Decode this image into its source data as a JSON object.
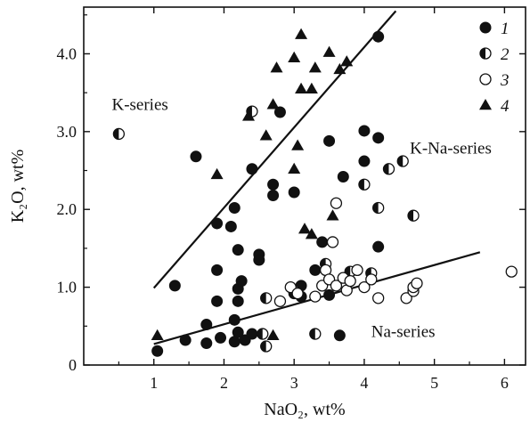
{
  "chart_data": {
    "type": "scatter",
    "title": "",
    "xlabel": "NaO₂, wt%",
    "ylabel": "K₂O, wt%",
    "xlim": [
      0,
      6.3
    ],
    "ylim": [
      0,
      4.6
    ],
    "xticks": [
      1,
      2,
      3,
      4,
      5,
      6
    ],
    "yticks": [
      0,
      1.0,
      2.0,
      3.0,
      4.0
    ],
    "xtick_labels": [
      "1",
      "2",
      "3",
      "4",
      "5",
      "6"
    ],
    "ytick_labels": [
      "0",
      "1.0",
      "2.0",
      "3.0",
      "4.0"
    ],
    "grid": false,
    "legend_position": "top-right",
    "series": [
      {
        "name": "1",
        "marker": "filled-circle",
        "points": [
          [
            1.3,
            1.02
          ],
          [
            1.6,
            2.68
          ],
          [
            1.9,
            1.82
          ],
          [
            1.9,
            1.22
          ],
          [
            1.9,
            0.82
          ],
          [
            2.1,
            1.78
          ],
          [
            2.15,
            2.02
          ],
          [
            2.2,
            1.48
          ],
          [
            2.2,
            0.98
          ],
          [
            2.25,
            1.08
          ],
          [
            2.2,
            0.82
          ],
          [
            2.15,
            0.58
          ],
          [
            2.2,
            0.42
          ],
          [
            2.3,
            0.32
          ],
          [
            2.4,
            2.52
          ],
          [
            2.5,
            1.42
          ],
          [
            2.5,
            1.35
          ],
          [
            2.7,
            2.32
          ],
          [
            2.7,
            2.18
          ],
          [
            2.8,
            3.25
          ],
          [
            3.0,
            2.22
          ],
          [
            3.0,
            0.92
          ],
          [
            3.1,
            1.02
          ],
          [
            3.1,
            0.88
          ],
          [
            3.3,
            1.22
          ],
          [
            3.4,
            1.58
          ],
          [
            3.5,
            2.88
          ],
          [
            3.7,
            2.42
          ],
          [
            3.65,
            0.38
          ],
          [
            4.0,
            3.01
          ],
          [
            4.0,
            2.62
          ],
          [
            4.2,
            2.92
          ],
          [
            4.2,
            1.52
          ],
          [
            4.2,
            4.22
          ],
          [
            1.05,
            0.18
          ],
          [
            1.45,
            0.32
          ],
          [
            1.75,
            0.28
          ],
          [
            1.75,
            0.52
          ],
          [
            1.95,
            0.35
          ],
          [
            2.15,
            0.3
          ],
          [
            2.4,
            0.4
          ],
          [
            3.5,
            0.9
          ]
        ]
      },
      {
        "name": "2",
        "marker": "half-filled-circle",
        "points": [
          [
            0.5,
            2.97
          ],
          [
            2.4,
            3.26
          ],
          [
            2.55,
            0.4
          ],
          [
            2.6,
            0.24
          ],
          [
            3.3,
            0.4
          ],
          [
            3.45,
            1.3
          ],
          [
            4.0,
            2.32
          ],
          [
            4.2,
            2.02
          ],
          [
            4.35,
            2.52
          ],
          [
            4.55,
            2.62
          ],
          [
            4.7,
            1.92
          ],
          [
            2.6,
            0.86
          ],
          [
            3.0,
            0.95
          ],
          [
            3.8,
            1.2
          ],
          [
            4.1,
            1.18
          ]
        ]
      },
      {
        "name": "3",
        "marker": "open-circle",
        "points": [
          [
            2.8,
            0.82
          ],
          [
            2.95,
            1.0
          ],
          [
            3.05,
            0.92
          ],
          [
            3.3,
            0.88
          ],
          [
            3.4,
            1.02
          ],
          [
            3.45,
            1.22
          ],
          [
            3.5,
            1.1
          ],
          [
            3.55,
            1.58
          ],
          [
            3.6,
            1.02
          ],
          [
            3.7,
            1.12
          ],
          [
            3.75,
            0.96
          ],
          [
            3.8,
            1.08
          ],
          [
            3.9,
            1.22
          ],
          [
            4.0,
            1.0
          ],
          [
            4.1,
            1.1
          ],
          [
            3.6,
            2.08
          ],
          [
            4.2,
            0.86
          ],
          [
            4.6,
            0.86
          ],
          [
            4.7,
            0.95
          ],
          [
            4.7,
            1.0
          ],
          [
            4.75,
            1.05
          ],
          [
            6.1,
            1.2
          ]
        ]
      },
      {
        "name": "4",
        "marker": "filled-triangle",
        "points": [
          [
            1.05,
            0.38
          ],
          [
            1.9,
            2.45
          ],
          [
            2.35,
            3.2
          ],
          [
            2.6,
            2.95
          ],
          [
            2.7,
            3.35
          ],
          [
            2.75,
            3.82
          ],
          [
            3.0,
            3.95
          ],
          [
            3.05,
            2.82
          ],
          [
            3.0,
            2.52
          ],
          [
            3.1,
            4.25
          ],
          [
            3.1,
            3.55
          ],
          [
            3.25,
            3.55
          ],
          [
            3.3,
            3.82
          ],
          [
            3.5,
            4.02
          ],
          [
            3.65,
            3.8
          ],
          [
            3.75,
            3.9
          ],
          [
            3.15,
            1.75
          ],
          [
            3.25,
            1.68
          ],
          [
            3.55,
            1.92
          ],
          [
            2.7,
            0.38
          ]
        ]
      }
    ],
    "trend_lines": [
      {
        "x": [
          1.0,
          4.45
        ],
        "y": [
          0.99,
          4.55
        ]
      },
      {
        "x": [
          1.0,
          5.65
        ],
        "y": [
          0.27,
          1.45
        ]
      }
    ],
    "annotations": [
      {
        "text": "K-series",
        "x": 0.4,
        "y": 3.28
      },
      {
        "text": "K-Na-series",
        "x": 4.65,
        "y": 2.72
      },
      {
        "text": "Na-series",
        "x": 4.1,
        "y": 0.36
      }
    ]
  }
}
